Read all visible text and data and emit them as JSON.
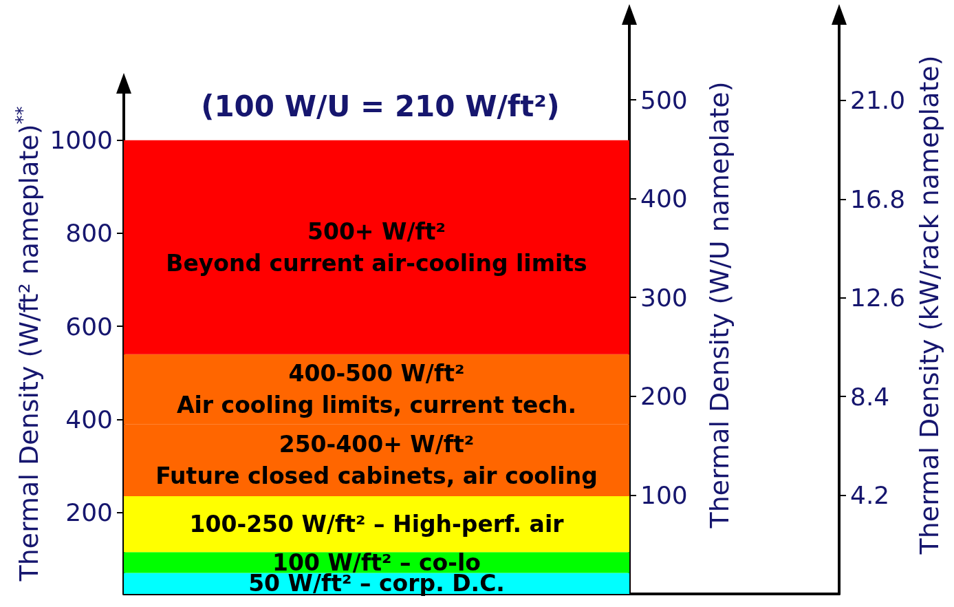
{
  "chart_data": {
    "type": "bar",
    "stacked": true,
    "title": "(100 W/U = 210 W/ft²)",
    "categories": [
      null
    ],
    "series": [
      {
        "name": "50 W/ft² – corp. D.C.",
        "color": "#00ffff",
        "values": [
          70
        ]
      },
      {
        "name": "100 W/ft² – co-lo",
        "color": "#00ff00",
        "values": [
          45
        ]
      },
      {
        "name": "100-250 W/ft² – High-perf. air",
        "color": "#ffff00",
        "values": [
          120
        ]
      },
      {
        "name": "250-400+ W/ft²\nFuture closed cabinets, air cooling",
        "color": "#ff6600",
        "values": [
          155
        ]
      },
      {
        "name": "400-500 W/ft²\nAir cooling limits, current tech.",
        "color": "#ff6600",
        "values": [
          150
        ]
      },
      {
        "name": "500+ W/ft²\nBeyond current air-cooling limits",
        "color": "#ff0000",
        "values": [
          460
        ]
      }
    ],
    "ylim": [
      25,
      1100
    ],
    "yticks": [
      200,
      400,
      600,
      800,
      1000
    ],
    "y2lim": [
      0,
      585
    ],
    "y2ticks": [
      100,
      200,
      300,
      400,
      500
    ],
    "y3lim": [
      0,
      24.6
    ],
    "y3ticks": [
      {
        "value": 4.2,
        "label": "4.2"
      },
      {
        "value": 8.4,
        "label": "8.4"
      },
      {
        "value": 12.6,
        "label": "12.6"
      },
      {
        "value": 16.8,
        "label": "16.8"
      },
      {
        "value": 21,
        "label": "21.0"
      }
    ],
    "ylabel": "Thermal Density (W/ft² nameplate)$^{**}$",
    "y2label": "Thermal Density (W/U nameplate)",
    "y3label": "Thermal Density (kW/rack nameplate)"
  }
}
